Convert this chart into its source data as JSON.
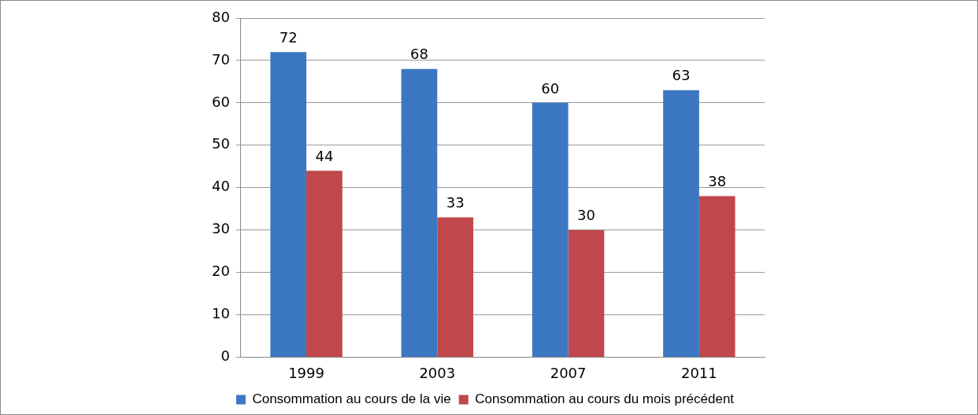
{
  "chart_data": {
    "type": "bar",
    "categories": [
      "1999",
      "2003",
      "2007",
      "2011"
    ],
    "series": [
      {
        "name": "Consommation au cours de la vie",
        "color": "#3b78c1",
        "values": [
          72,
          68,
          60,
          63
        ]
      },
      {
        "name": "Consommation au cours du mois précédent",
        "color": "#c0474b",
        "values": [
          44,
          33,
          30,
          38
        ]
      }
    ],
    "ylim": [
      0,
      80
    ],
    "yticks": [
      0,
      10,
      20,
      30,
      40,
      50,
      60,
      70,
      80
    ],
    "grid": "y",
    "legend": "bottom",
    "data_labels": true
  }
}
